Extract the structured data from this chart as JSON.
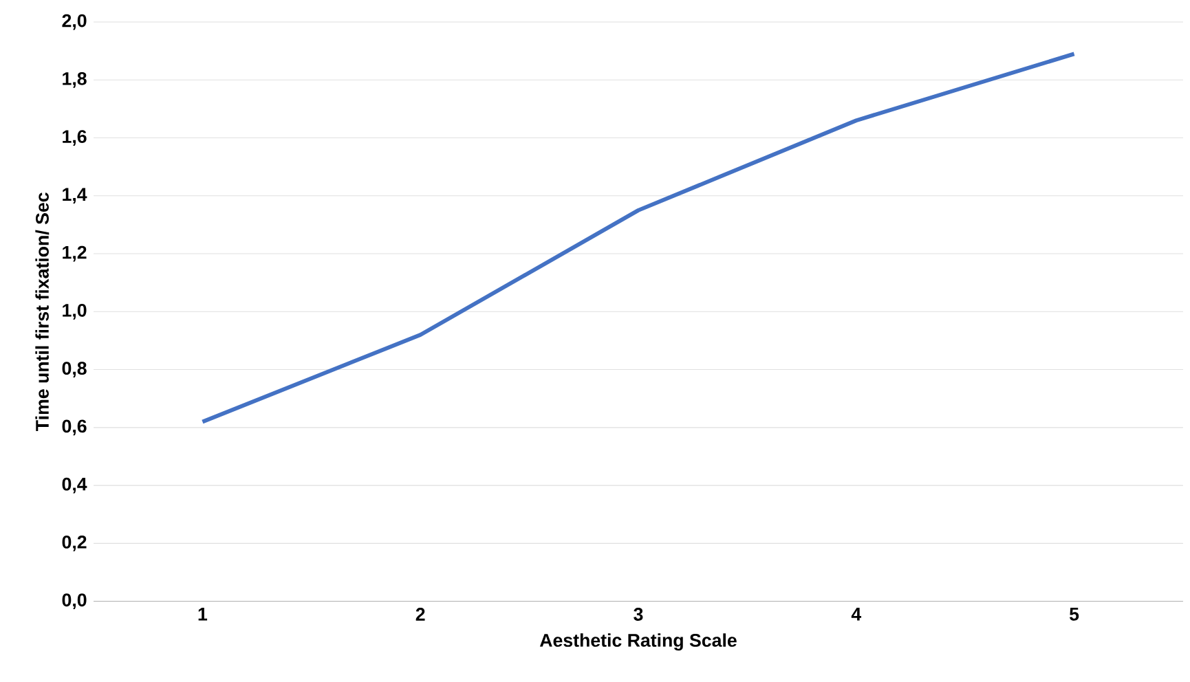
{
  "chart_data": {
    "type": "line",
    "xlabel": "Aesthetic Rating Scale",
    "ylabel": "Time until first fixation/ Sec",
    "categories": [
      "1",
      "2",
      "3",
      "4",
      "5"
    ],
    "series": [
      {
        "color": "#4472c4",
        "values": [
          0.62,
          0.92,
          1.35,
          1.66,
          1.89
        ]
      }
    ],
    "ylim": [
      0,
      2
    ],
    "yticks": [
      {
        "value": 0,
        "label": "0,0"
      },
      {
        "value": 0.2,
        "label": "0,2"
      },
      {
        "value": 0.4,
        "label": "0,4"
      },
      {
        "value": 0.6,
        "label": "0,6"
      },
      {
        "value": 0.8,
        "label": "0,8"
      },
      {
        "value": 1.0,
        "label": "1,0"
      },
      {
        "value": 1.2,
        "label": "1,2"
      },
      {
        "value": 1.4,
        "label": "1,4"
      },
      {
        "value": 1.6,
        "label": "1,6"
      },
      {
        "value": 1.8,
        "label": "1,8"
      },
      {
        "value": 2.0,
        "label": "2,0"
      }
    ],
    "grid": "y",
    "marker": "none",
    "line_style": "solid"
  }
}
